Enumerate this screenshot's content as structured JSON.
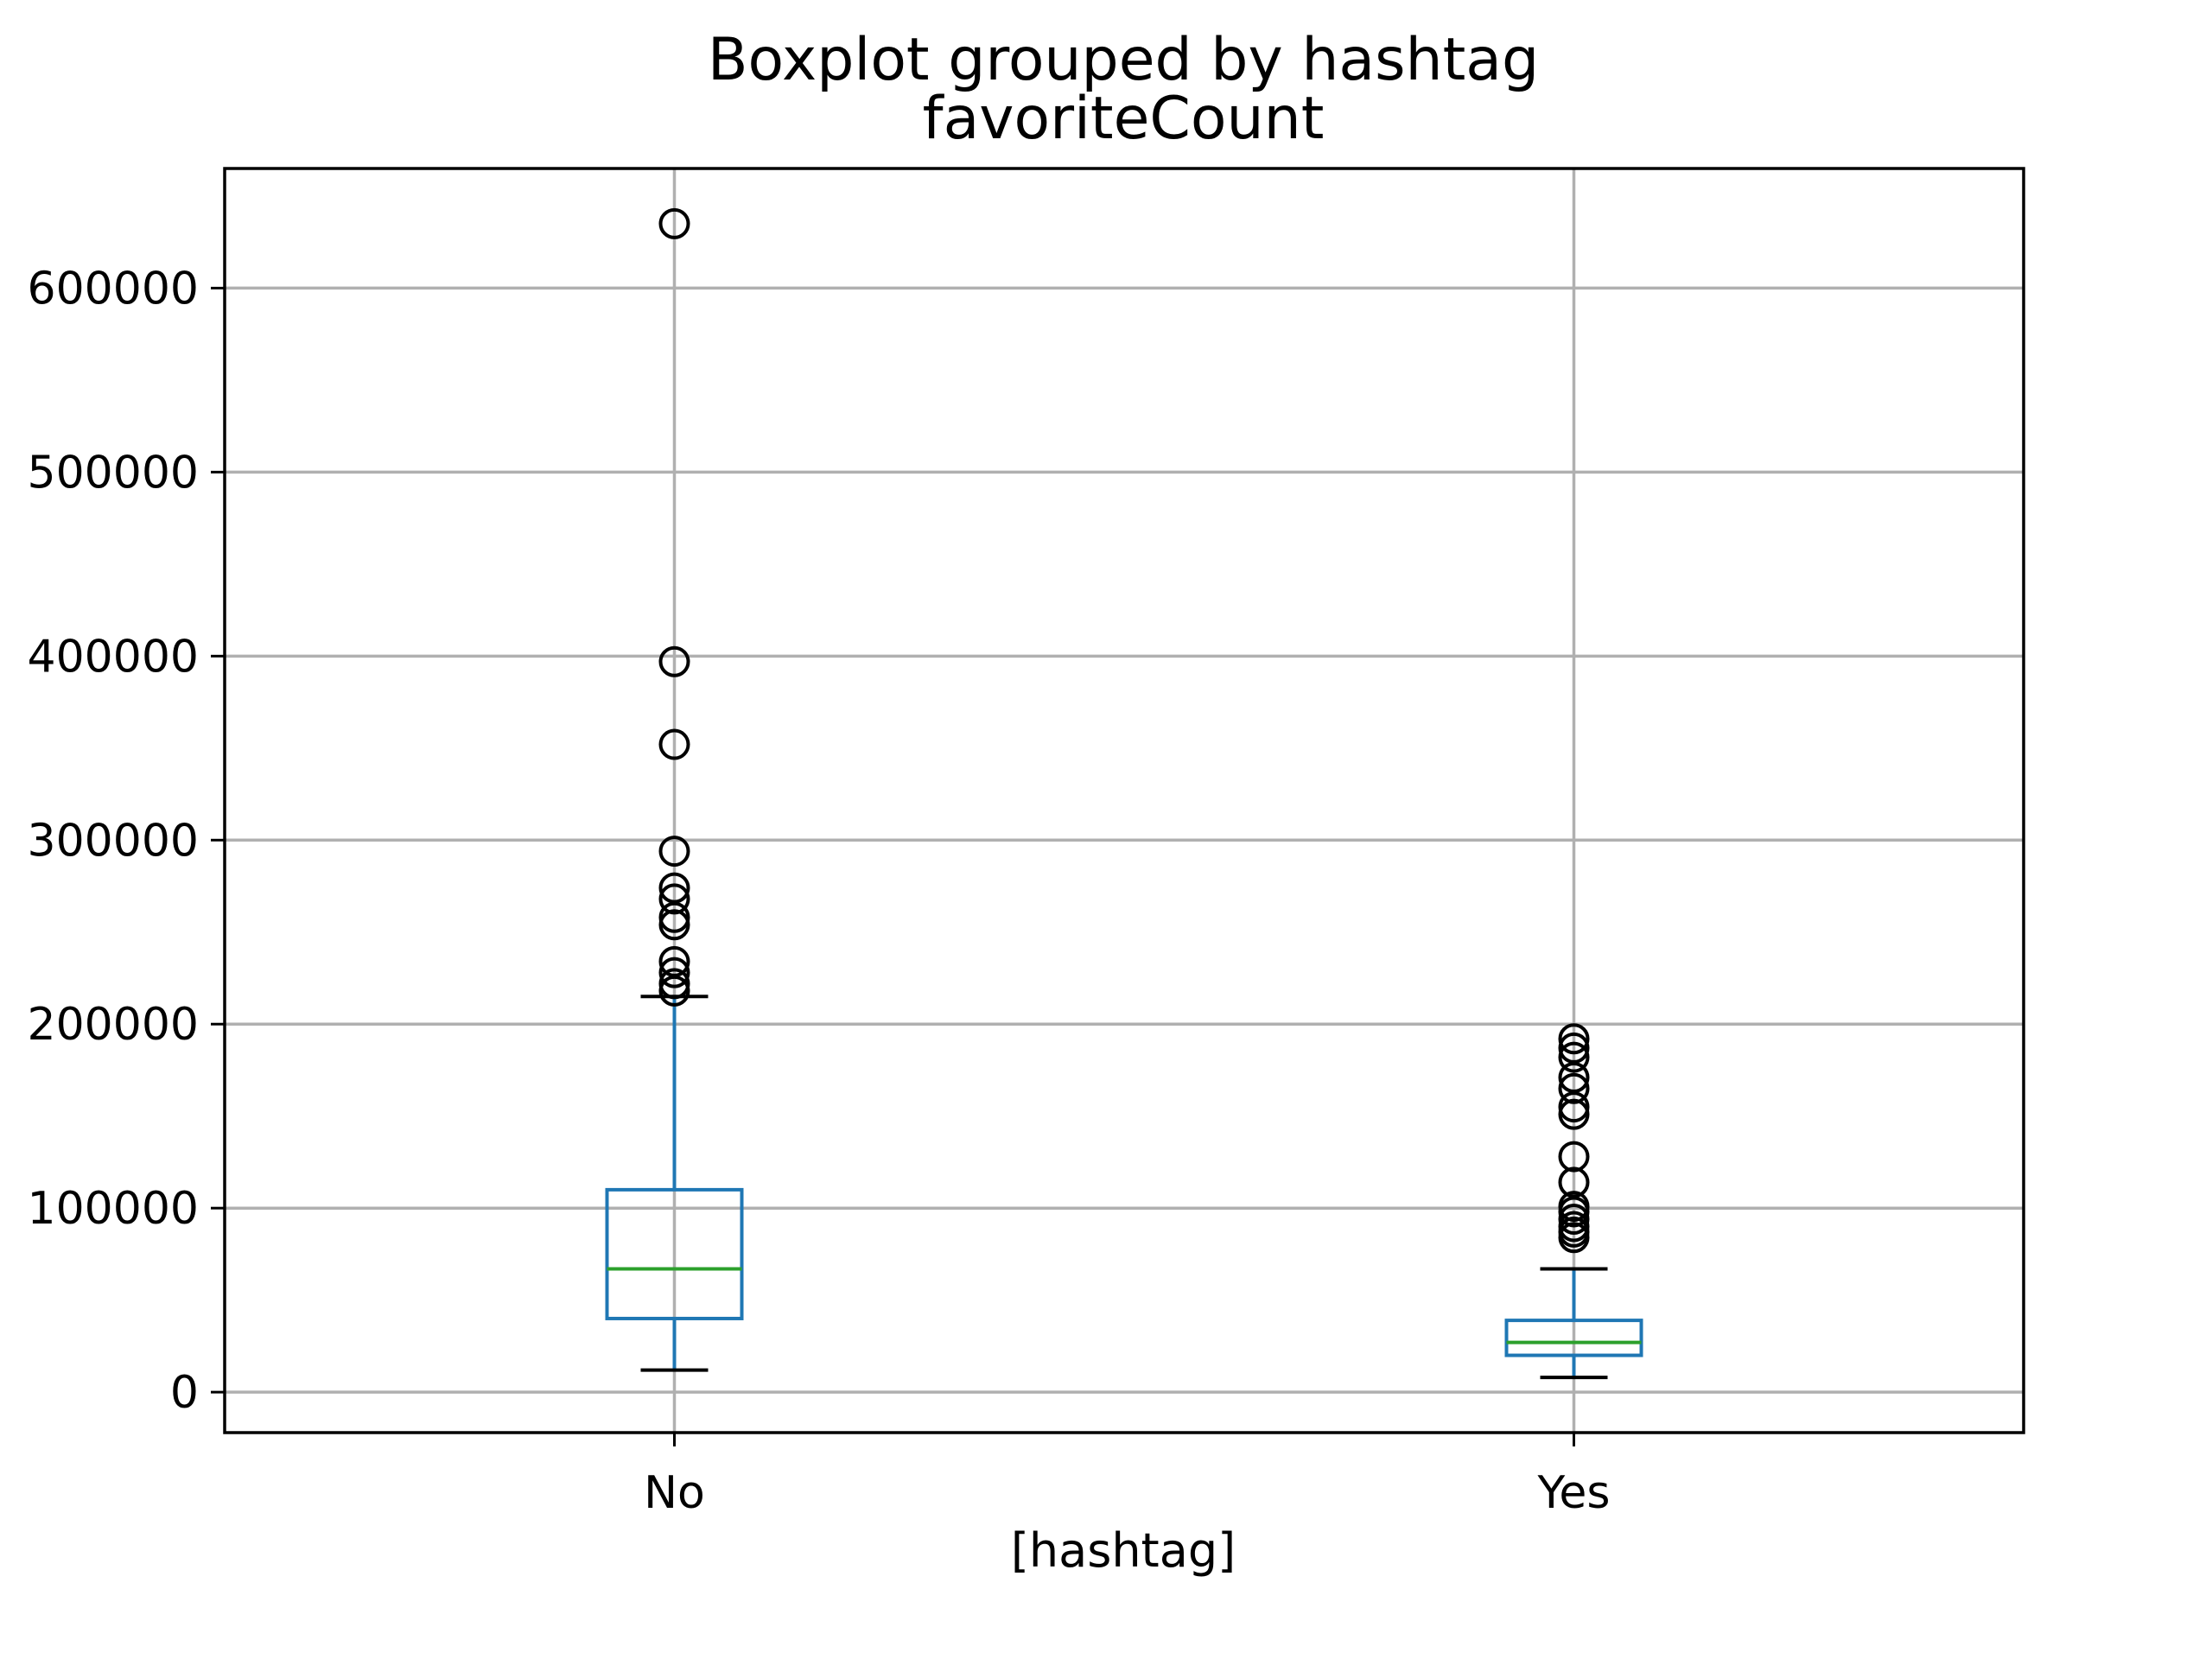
{
  "chart_data": {
    "type": "boxplot",
    "title": "Boxplot grouped by hashtag",
    "subtitle": "favoriteCount",
    "xlabel": "[hashtag]",
    "ylabel": "",
    "categories": [
      "No",
      "Yes"
    ],
    "ylim": [
      -22000,
      665000
    ],
    "yticks": [
      0,
      100000,
      200000,
      300000,
      400000,
      500000,
      600000
    ],
    "ytick_labels": [
      "0",
      "100000",
      "200000",
      "300000",
      "400000",
      "500000",
      "600000"
    ],
    "grid": true,
    "boxes": [
      {
        "category": "No",
        "whisker_low": 12000,
        "q1": 40000,
        "median": 67000,
        "q3": 110000,
        "whisker_high": 215000,
        "outliers": [
          218000,
          222000,
          228000,
          234000,
          254000,
          258000,
          268000,
          274000,
          294000,
          352000,
          397000,
          635000
        ]
      },
      {
        "category": "Yes",
        "whisker_low": 8000,
        "q1": 20000,
        "median": 27000,
        "q3": 39000,
        "whisker_high": 67000,
        "outliers": [
          84000,
          87000,
          90000,
          94000,
          98000,
          101000,
          114000,
          128000,
          151000,
          155000,
          165000,
          171000,
          182000,
          187000,
          192000
        ]
      }
    ],
    "colors": {
      "box": "#1f77b4",
      "median": "#2ca02c",
      "whisker_cap": "#000000",
      "outlier": "#000000",
      "grid": "#b0b0b0",
      "frame": "#000000"
    }
  }
}
